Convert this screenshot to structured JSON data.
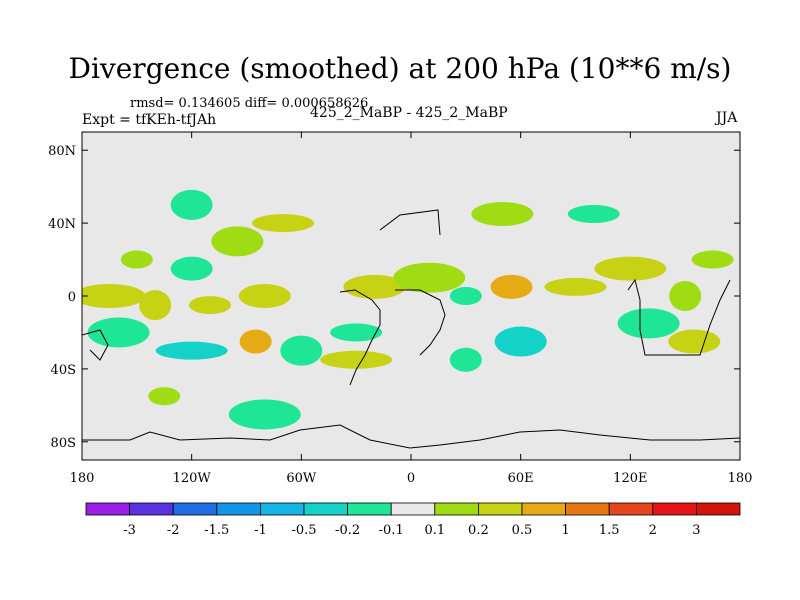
{
  "title": "Divergence (smoothed) at 200 hPa (10**6 m/s)",
  "left_info": {
    "stats": "rmsd= 0.134605 diff= 0.000658626",
    "experiment": "Expt = tfKEh-tfJAh"
  },
  "center_info": "425_2_MaBP - 425_2_MaBP",
  "right_info": "JJA",
  "chart_data": {
    "type": "heatmap",
    "title": "Divergence (smoothed) at 200 hPa (10**6 m/s)",
    "x_ticks": [
      "180",
      "120W",
      "60W",
      "0",
      "60E",
      "120E",
      "180"
    ],
    "x_tick_values": [
      -180,
      -120,
      -60,
      0,
      60,
      120,
      180
    ],
    "y_ticks": [
      "80N",
      "40N",
      "0",
      "40S",
      "80S"
    ],
    "y_tick_values": [
      80,
      40,
      0,
      -40,
      -80
    ],
    "xlim": [
      -180,
      180
    ],
    "ylim": [
      -90,
      90
    ],
    "grid": false,
    "colorbar": {
      "labels": [
        "-3",
        "-2",
        "-1.5",
        "-1",
        "-0.5",
        "-0.2",
        "-0.1",
        "0.1",
        "0.2",
        "0.5",
        "1",
        "1.5",
        "2",
        "3"
      ],
      "colors": [
        "#9a1ee6",
        "#5a32e0",
        "#1e6ee6",
        "#1496e6",
        "#14b4e6",
        "#14d2c8",
        "#1ee696",
        "#e8e8e8",
        "#a0dc14",
        "#c8d214",
        "#e6aa14",
        "#e67814",
        "#e6461e",
        "#e61414",
        "#d2140a"
      ]
    },
    "blobs": [
      {
        "lon": -150,
        "lat": 20,
        "value": 0.15
      },
      {
        "lon": -120,
        "lat": 15,
        "value": -0.15
      },
      {
        "lon": -95,
        "lat": 30,
        "value": 0.15
      },
      {
        "lon": -70,
        "lat": 40,
        "value": 0.2
      },
      {
        "lon": -165,
        "lat": 0,
        "value": 0.3
      },
      {
        "lon": -140,
        "lat": -5,
        "value": 0.25
      },
      {
        "lon": -110,
        "lat": -5,
        "value": 0.3
      },
      {
        "lon": -80,
        "lat": 0,
        "value": 0.2
      },
      {
        "lon": -160,
        "lat": -20,
        "value": -0.15
      },
      {
        "lon": -120,
        "lat": -30,
        "value": -0.35
      },
      {
        "lon": -85,
        "lat": -25,
        "value": 0.5
      },
      {
        "lon": -60,
        "lat": -30,
        "value": -0.2
      },
      {
        "lon": -30,
        "lat": -20,
        "value": -0.15
      },
      {
        "lon": -20,
        "lat": 5,
        "value": 0.2
      },
      {
        "lon": 10,
        "lat": 10,
        "value": 0.15
      },
      {
        "lon": 30,
        "lat": 0,
        "value": -0.2
      },
      {
        "lon": 55,
        "lat": 5,
        "value": 0.5
      },
      {
        "lon": 60,
        "lat": -25,
        "value": -0.3
      },
      {
        "lon": 90,
        "lat": 5,
        "value": 0.4
      },
      {
        "lon": 120,
        "lat": 15,
        "value": 0.2
      },
      {
        "lon": 150,
        "lat": 0,
        "value": 0.15
      },
      {
        "lon": 165,
        "lat": 20,
        "value": 0.15
      },
      {
        "lon": 155,
        "lat": -25,
        "value": 0.2
      },
      {
        "lon": 130,
        "lat": -15,
        "value": -0.15
      },
      {
        "lon": -30,
        "lat": -35,
        "value": 0.2
      },
      {
        "lon": 30,
        "lat": -35,
        "value": -0.15
      },
      {
        "lon": -120,
        "lat": 50,
        "value": -0.15
      },
      {
        "lon": 100,
        "lat": 45,
        "value": -0.15
      },
      {
        "lon": 50,
        "lat": 45,
        "value": 0.15
      },
      {
        "lon": -80,
        "lat": -65,
        "value": -0.15
      },
      {
        "lon": -135,
        "lat": -55,
        "value": 0.15
      }
    ]
  }
}
